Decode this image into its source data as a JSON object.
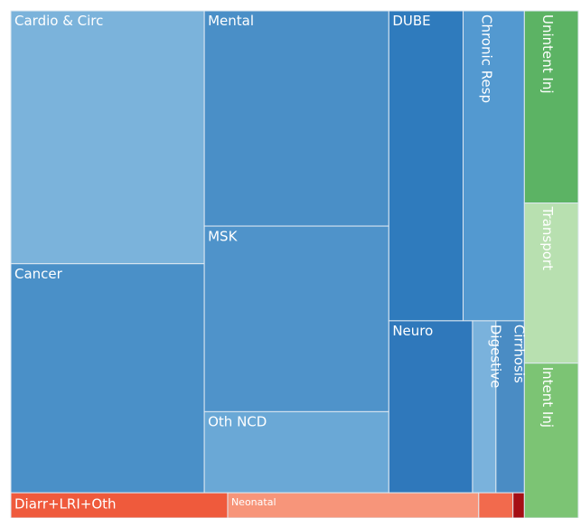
{
  "chart_data": {
    "type": "treemap",
    "children": [
      {
        "children": [
          {
            "children": [
              {
                "children": [
                  {
                    "name": "Cardio & Circ",
                    "value": 17.0,
                    "color": "#7bb3db"
                  },
                  {
                    "name": "Cancer",
                    "value": 15.4,
                    "color": "#4a90c8"
                  }
                ]
              },
              {
                "children": [
                  {
                    "name": "Mental",
                    "value": 13.8,
                    "color": "#4a8fc7"
                  },
                  {
                    "name": "MSK",
                    "value": 11.9,
                    "color": "#4f93ca"
                  },
                  {
                    "name": "Oth NCD",
                    "value": 5.2,
                    "color": "#6aa8d6"
                  }
                ]
              },
              {
                "children": [
                  {
                    "children": [
                      {
                        "name": "DUBE",
                        "value": 8.0,
                        "color": "#2f7bbd"
                      },
                      {
                        "name": "Chronic Resp",
                        "value": 6.6,
                        "color": "#5399d0"
                      }
                    ]
                  },
                  {
                    "children": [
                      {
                        "name": "Neuro",
                        "value": 5.0,
                        "color": "#2f78bb"
                      },
                      {
                        "name": "Digestive",
                        "value": 1.4,
                        "color": "#7ab2dc"
                      },
                      {
                        "name": "Cirrhosis",
                        "value": 1.7,
                        "color": "#4a8cc4"
                      }
                    ]
                  }
                ]
              }
            ]
          },
          {
            "children": [
              {
                "name": "Diarr+LRI+Oth",
                "value": 1.9,
                "color": "#ef5a3c"
              },
              {
                "name": "Neonatal",
                "value": 2.2,
                "color": "#f7957a"
              },
              {
                "name": null,
                "value": 0.3,
                "color": "#f26a4d"
              },
              {
                "name": null,
                "value": 0.1,
                "color": "#a50f15"
              }
            ]
          }
        ]
      },
      {
        "children": [
          {
            "name": "Unintent Inj",
            "value": 3.6,
            "color": "#5cb364"
          },
          {
            "name": "Transport",
            "value": 3.0,
            "color": "#b8e0b0"
          },
          {
            "name": "Intent Inj",
            "value": 2.9,
            "color": "#7cc474"
          }
        ]
      }
    ]
  }
}
